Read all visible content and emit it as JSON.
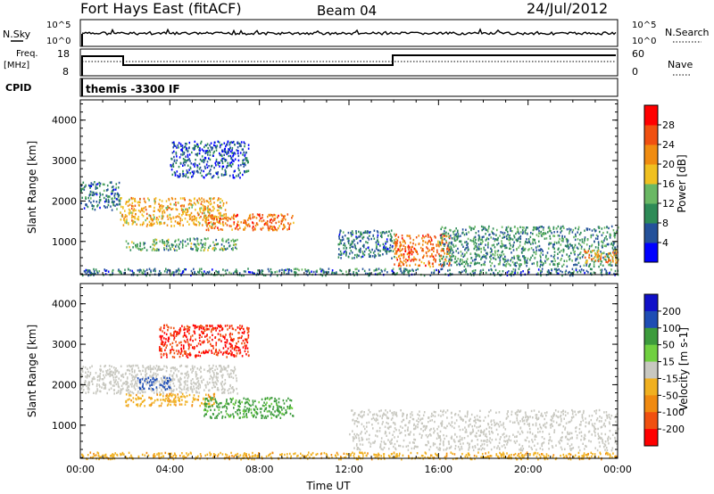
{
  "header": {
    "station": "Fort Hays East (fitACF)",
    "beam": "Beam 04",
    "date": "24/Jul/2012"
  },
  "params": {
    "nsky_label": "N.Sky",
    "nsearch_label": "N.Search",
    "left_ticks": [
      "10^5",
      "10^0"
    ],
    "right_ticks": [
      "10^5",
      "10^0"
    ],
    "freq_label": "Freq.",
    "freq_unit": "[MHz]",
    "freq_ticks": [
      "18",
      "8"
    ],
    "nave_label": "Nave",
    "nave_ticks": [
      "60",
      "0"
    ],
    "cpid_label": "CPID",
    "cpid_text": "themis -3300 IF"
  },
  "colors": {
    "power": [
      "#0000ff",
      "#24519a",
      "#2e8b57",
      "#6ab864",
      "#f0c020",
      "#f08c10",
      "#f05010",
      "#ff0000"
    ],
    "velocity": [
      "#1010c8",
      "#1e4db4",
      "#3c9b3c",
      "#70d040",
      "#c8c8c0",
      "#f0b020",
      "#f08a10",
      "#f05010",
      "#ff0000"
    ]
  },
  "chart_data": [
    {
      "type": "heatmap",
      "title": "",
      "ylabel": "Slant Range [km]",
      "xlabel": "",
      "xlim": [
        "00:00",
        "24:00"
      ],
      "ylim": [
        180,
        4500
      ],
      "yticks": [
        "1000",
        "2000",
        "3000",
        "4000"
      ],
      "colorbar": {
        "label": "Power [dB]",
        "ticks": [
          "4",
          "8",
          "12",
          "16",
          "20",
          "24",
          "28"
        ],
        "range": [
          0,
          32
        ]
      },
      "echo_regions": [
        {
          "t": [
            "00:00",
            "01:45"
          ],
          "range_km": [
            1800,
            2500
          ],
          "value": 8
        },
        {
          "t": [
            "01:45",
            "06:30"
          ],
          "range_km": [
            1400,
            2100
          ],
          "value": 20
        },
        {
          "t": [
            "05:30",
            "09:30"
          ],
          "range_km": [
            1300,
            1700
          ],
          "value": 24
        },
        {
          "t": [
            "02:00",
            "07:00"
          ],
          "range_km": [
            800,
            1100
          ],
          "value": 12
        },
        {
          "t": [
            "04:00",
            "07:30"
          ],
          "range_km": [
            2600,
            3500
          ],
          "value": 6
        },
        {
          "t": [
            "11:30",
            "14:00"
          ],
          "range_km": [
            600,
            1300
          ],
          "value": 8
        },
        {
          "t": [
            "14:00",
            "16:30"
          ],
          "range_km": [
            400,
            1200
          ],
          "value": 24
        },
        {
          "t": [
            "16:00",
            "24:00"
          ],
          "range_km": [
            400,
            1400
          ],
          "value": 10
        },
        {
          "t": [
            "22:30",
            "24:00"
          ],
          "range_km": [
            500,
            800
          ],
          "value": 22
        },
        {
          "t": [
            "00:00",
            "24:00"
          ],
          "range_km": [
            180,
            350
          ],
          "value": 8
        }
      ]
    },
    {
      "type": "heatmap",
      "title": "",
      "ylabel": "Slant Range [km]",
      "xlabel": "Time UT",
      "xlim": [
        "00:00",
        "24:00"
      ],
      "ylim": [
        180,
        4500
      ],
      "xticks": [
        "00:00",
        "04:00",
        "08:00",
        "12:00",
        "16:00",
        "20:00",
        "00:00"
      ],
      "yticks": [
        "1000",
        "2000",
        "3000",
        "4000"
      ],
      "colorbar": {
        "label": "Velocity [m s-1]",
        "ticks": [
          "200",
          "100",
          "50",
          "15",
          "-15",
          "-50",
          "-100",
          "-200"
        ]
      },
      "echo_regions": [
        {
          "t": [
            "00:00",
            "07:00"
          ],
          "range_km": [
            1800,
            2500
          ],
          "value": 0
        },
        {
          "t": [
            "02:00",
            "06:00"
          ],
          "range_km": [
            1500,
            1800
          ],
          "value": -40
        },
        {
          "t": [
            "05:30",
            "09:30"
          ],
          "range_km": [
            1200,
            1700
          ],
          "value": 60
        },
        {
          "t": [
            "02:30",
            "04:00"
          ],
          "range_km": [
            1900,
            2200
          ],
          "value": 150
        },
        {
          "t": [
            "03:30",
            "07:30"
          ],
          "range_km": [
            2700,
            3500
          ],
          "value": -200
        },
        {
          "t": [
            "12:00",
            "24:00"
          ],
          "range_km": [
            400,
            1400
          ],
          "value": 0
        },
        {
          "t": [
            "00:00",
            "24:00"
          ],
          "range_km": [
            180,
            350
          ],
          "value": -40
        }
      ]
    }
  ]
}
